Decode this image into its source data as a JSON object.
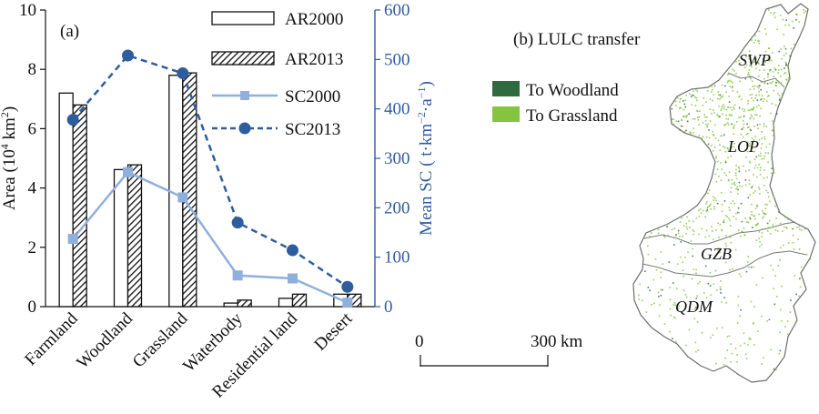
{
  "chart_data": [
    {
      "type": "bar+line",
      "panel_label": "(a)",
      "categories": [
        "Farmland",
        "Woodland",
        "Grassland",
        "Waterbody",
        "Residential land",
        "Desert"
      ],
      "bar_series": [
        {
          "name": "AR2000",
          "values": [
            7.2,
            4.62,
            7.8,
            0.12,
            0.28,
            0.42
          ],
          "fill": "#ffffff"
        },
        {
          "name": "AR2013",
          "values": [
            6.8,
            4.78,
            7.88,
            0.22,
            0.42,
            0.42
          ],
          "fill": "hatched"
        }
      ],
      "line_series": [
        {
          "name": "SC2000",
          "values": [
            137,
            272,
            221,
            63,
            57,
            8
          ],
          "color": "#8fb0dc",
          "marker": "square",
          "style": "solid"
        },
        {
          "name": "SC2013",
          "values": [
            378,
            508,
            472,
            170,
            114,
            40
          ],
          "color": "#2e5d9e",
          "marker": "circle",
          "style": "dashed"
        }
      ],
      "y_left": {
        "label_main": "Area (10",
        "label_sup": "4",
        "label_unit": " km",
        "label_sup2": "2",
        "label_close": ")",
        "ylim": [
          0,
          10
        ],
        "ticks": [
          "0",
          "2",
          "4",
          "6",
          "8",
          "10"
        ]
      },
      "y_right": {
        "label_main": "Mean SC ( t·km",
        "label_sup": "−2",
        "label_mid": "·a",
        "label_sup2": "−1",
        "label_close": ")",
        "ylim": [
          0,
          600
        ],
        "ticks": [
          "0",
          "100",
          "200",
          "300",
          "400",
          "500",
          "600"
        ],
        "color": "#2e5d9e"
      }
    }
  ],
  "map_panel": {
    "label": "(b) LULC transfer",
    "legend": [
      {
        "label": "To Woodland",
        "color": "#2f6b3f"
      },
      {
        "label": "To Grassland",
        "color": "#86c440"
      }
    ],
    "regions": [
      "SWP",
      "LOP",
      "GZB",
      "QDM"
    ],
    "scale_bar": {
      "start": "0",
      "end": "300",
      "unit": "km"
    }
  }
}
